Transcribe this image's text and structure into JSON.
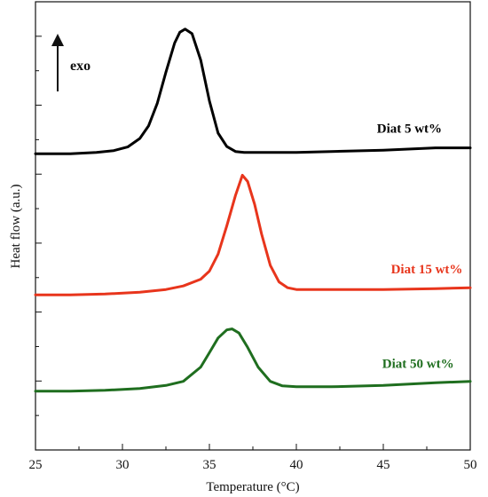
{
  "chart_data": {
    "type": "line",
    "title": "",
    "xlabel": "Temperature (°C)",
    "ylabel": "Heat flow (a.u.)",
    "xlim": [
      25,
      50
    ],
    "ylim": [
      0,
      100
    ],
    "x_ticks": [
      "25",
      "30",
      "35",
      "40",
      "45",
      "50"
    ],
    "y_tick_labels_shown": false,
    "grid": false,
    "annotation": {
      "text": "exo",
      "direction": "up"
    },
    "series": [
      {
        "name": "Diat 5 wt%",
        "color": "#000000",
        "points": [
          [
            25.0,
            66.1
          ],
          [
            27.0,
            66.1
          ],
          [
            28.5,
            66.4
          ],
          [
            29.5,
            66.8
          ],
          [
            30.3,
            67.6
          ],
          [
            31.0,
            69.5
          ],
          [
            31.5,
            72.3
          ],
          [
            32.0,
            77.3
          ],
          [
            32.5,
            84.3
          ],
          [
            33.0,
            90.8
          ],
          [
            33.3,
            93.2
          ],
          [
            33.6,
            93.9
          ],
          [
            34.0,
            92.9
          ],
          [
            34.5,
            87.0
          ],
          [
            35.0,
            77.9
          ],
          [
            35.5,
            70.7
          ],
          [
            36.0,
            67.7
          ],
          [
            36.5,
            66.6
          ],
          [
            37.0,
            66.4
          ],
          [
            38.0,
            66.4
          ],
          [
            40.0,
            66.4
          ],
          [
            42.0,
            66.6
          ],
          [
            45.0,
            66.9
          ],
          [
            48.0,
            67.4
          ],
          [
            50.0,
            67.4
          ]
        ]
      },
      {
        "name": "Diat 15 wt%",
        "color": "#e8351c",
        "points": [
          [
            25.0,
            34.6
          ],
          [
            27.0,
            34.6
          ],
          [
            29.0,
            34.8
          ],
          [
            31.0,
            35.2
          ],
          [
            32.5,
            35.8
          ],
          [
            33.5,
            36.6
          ],
          [
            34.5,
            38.1
          ],
          [
            35.0,
            39.9
          ],
          [
            35.5,
            43.7
          ],
          [
            36.0,
            50.0
          ],
          [
            36.5,
            56.8
          ],
          [
            36.9,
            61.3
          ],
          [
            37.2,
            59.9
          ],
          [
            37.6,
            54.8
          ],
          [
            38.0,
            48.2
          ],
          [
            38.5,
            41.2
          ],
          [
            39.0,
            37.5
          ],
          [
            39.5,
            36.2
          ],
          [
            40.0,
            35.8
          ],
          [
            42.0,
            35.8
          ],
          [
            45.0,
            35.8
          ],
          [
            48.0,
            36.0
          ],
          [
            50.0,
            36.2
          ]
        ]
      },
      {
        "name": "Diat 50 wt%",
        "color": "#1f6e1f",
        "points": [
          [
            25.0,
            13.1
          ],
          [
            27.0,
            13.1
          ],
          [
            29.0,
            13.3
          ],
          [
            31.0,
            13.7
          ],
          [
            32.5,
            14.4
          ],
          [
            33.5,
            15.3
          ],
          [
            34.5,
            18.5
          ],
          [
            35.0,
            21.7
          ],
          [
            35.5,
            25.0
          ],
          [
            36.0,
            26.8
          ],
          [
            36.3,
            27.0
          ],
          [
            36.7,
            26.1
          ],
          [
            37.2,
            22.9
          ],
          [
            37.8,
            18.5
          ],
          [
            38.5,
            15.3
          ],
          [
            39.2,
            14.3
          ],
          [
            40.0,
            14.1
          ],
          [
            42.0,
            14.1
          ],
          [
            45.0,
            14.4
          ],
          [
            48.0,
            15.0
          ],
          [
            50.0,
            15.3
          ]
        ]
      }
    ]
  }
}
